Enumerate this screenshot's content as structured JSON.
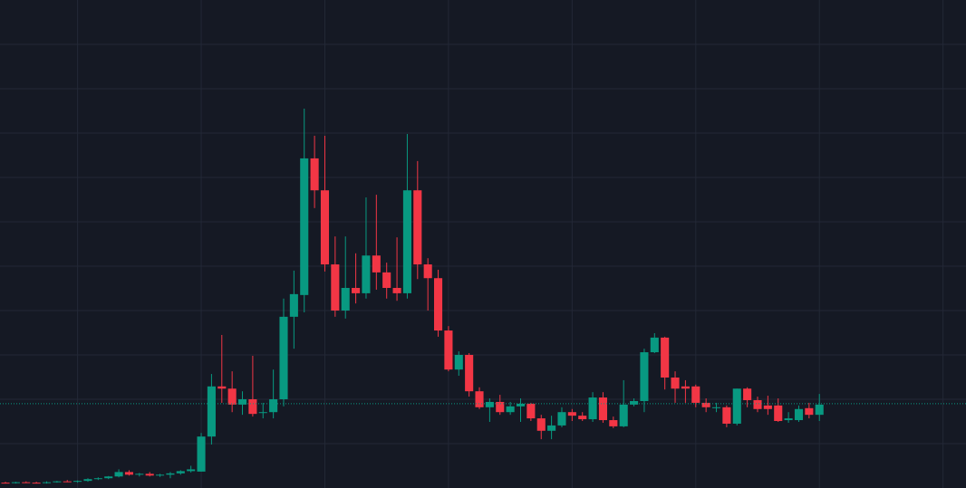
{
  "chart_data": {
    "type": "candlestick",
    "x": [
      0,
      1,
      2,
      3,
      4,
      5,
      6,
      7,
      8,
      9,
      10,
      11,
      12,
      13,
      14,
      15,
      16,
      17,
      18,
      19,
      20,
      21,
      22,
      23,
      24,
      25,
      26,
      27,
      28,
      29,
      30,
      31,
      32,
      33,
      34,
      35,
      36,
      37,
      38,
      39,
      40,
      41,
      42,
      43,
      44,
      45,
      46,
      47,
      48,
      49,
      50,
      51,
      52,
      53,
      54,
      55,
      56,
      57,
      58,
      59,
      60,
      61,
      62,
      63,
      64,
      65,
      66,
      67,
      68,
      69,
      70,
      71,
      72,
      73,
      74,
      75,
      76,
      77,
      78,
      79
    ],
    "open": [
      0.12,
      0.11,
      0.13,
      0.12,
      0.11,
      0.13,
      0.15,
      0.14,
      0.16,
      0.2,
      0.22,
      0.26,
      0.36,
      0.3,
      0.32,
      0.28,
      0.3,
      0.33,
      0.38,
      0.37,
      1.16,
      2.29,
      2.24,
      1.88,
      2.0,
      1.71,
      1.71,
      2.0,
      3.86,
      4.35,
      7.43,
      6.71,
      5.04,
      4.0,
      4.51,
      4.39,
      5.24,
      4.86,
      4.51,
      4.39,
      6.71,
      5.04,
      4.73,
      3.55,
      2.67,
      3.0,
      2.18,
      1.82,
      1.94,
      1.71,
      1.84,
      1.9,
      1.57,
      1.29,
      1.41,
      1.71,
      1.63,
      1.55,
      2.04,
      1.53,
      1.39,
      1.88,
      1.96,
      3.06,
      3.39,
      2.49,
      2.29,
      2.29,
      1.92,
      1.82,
      1.82,
      1.45,
      2.24,
      1.98,
      1.86,
      1.86,
      1.53,
      1.53,
      1.8,
      1.65
    ],
    "high": [
      0.14,
      0.14,
      0.15,
      0.14,
      0.15,
      0.16,
      0.18,
      0.17,
      0.22,
      0.24,
      0.27,
      0.42,
      0.4,
      0.34,
      0.36,
      0.32,
      0.36,
      0.4,
      0.5,
      1.24,
      2.57,
      3.45,
      2.63,
      2.18,
      2.98,
      1.92,
      2.67,
      4.27,
      4.9,
      8.55,
      7.94,
      7.94,
      5.67,
      5.67,
      5.29,
      6.55,
      6.61,
      5.08,
      5.65,
      7.98,
      7.37,
      5.18,
      4.92,
      3.65,
      3.08,
      3.04,
      2.27,
      2.02,
      2.1,
      1.94,
      2.02,
      1.92,
      1.65,
      1.63,
      1.82,
      1.78,
      1.71,
      2.16,
      2.16,
      1.61,
      2.43,
      2.02,
      3.14,
      3.49,
      3.41,
      2.63,
      2.43,
      2.33,
      2.02,
      1.92,
      1.86,
      2.24,
      2.27,
      2.06,
      2.08,
      2.02,
      1.71,
      1.86,
      1.92,
      2.12
    ],
    "low": [
      0.1,
      0.1,
      0.11,
      0.1,
      0.1,
      0.12,
      0.13,
      0.12,
      0.14,
      0.18,
      0.2,
      0.24,
      0.28,
      0.26,
      0.26,
      0.25,
      0.22,
      0.3,
      0.35,
      0.37,
      0.98,
      1.92,
      1.71,
      1.65,
      1.61,
      1.57,
      1.57,
      1.84,
      3.14,
      3.96,
      6.31,
      4.88,
      3.86,
      3.82,
      4.16,
      4.27,
      4.47,
      4.27,
      4.22,
      4.27,
      4.71,
      4.0,
      3.41,
      2.63,
      2.53,
      2.06,
      1.78,
      1.49,
      1.65,
      1.65,
      1.49,
      1.51,
      1.1,
      1.1,
      1.37,
      1.51,
      1.51,
      1.49,
      1.47,
      1.35,
      1.37,
      1.84,
      1.71,
      3.04,
      2.22,
      1.92,
      1.92,
      1.82,
      1.71,
      1.71,
      1.37,
      1.41,
      1.82,
      1.71,
      1.65,
      1.49,
      1.47,
      1.49,
      1.57,
      1.51
    ],
    "close": [
      0.11,
      0.13,
      0.12,
      0.11,
      0.13,
      0.15,
      0.14,
      0.16,
      0.2,
      0.22,
      0.26,
      0.36,
      0.3,
      0.32,
      0.28,
      0.3,
      0.33,
      0.38,
      0.42,
      1.16,
      2.29,
      2.24,
      1.88,
      2.0,
      1.67,
      1.71,
      2.0,
      3.86,
      4.37,
      7.43,
      6.71,
      5.04,
      4.0,
      4.51,
      4.39,
      5.24,
      4.86,
      4.51,
      4.39,
      6.71,
      5.04,
      4.73,
      3.55,
      2.67,
      3.0,
      2.18,
      1.82,
      1.94,
      1.71,
      1.84,
      1.9,
      1.57,
      1.29,
      1.41,
      1.71,
      1.63,
      1.55,
      2.04,
      1.53,
      1.39,
      1.88,
      1.96,
      3.06,
      3.39,
      2.49,
      2.24,
      2.24,
      1.92,
      1.82,
      1.82,
      1.45,
      2.24,
      1.98,
      1.78,
      1.78,
      1.51,
      1.57,
      1.78,
      1.65,
      1.88
    ],
    "up_color": "#089981",
    "down_color": "#f23645",
    "xlim": [
      -0.53,
      93.23
    ],
    "xticks": [
      7,
      19,
      31,
      43,
      55,
      67,
      79,
      91
    ],
    "ylim": [
      0,
      11
    ],
    "yticks": [
      1,
      2,
      3,
      4,
      5,
      6,
      7,
      8,
      9,
      10
    ],
    "grid": true,
    "last_price": 1.9
  }
}
